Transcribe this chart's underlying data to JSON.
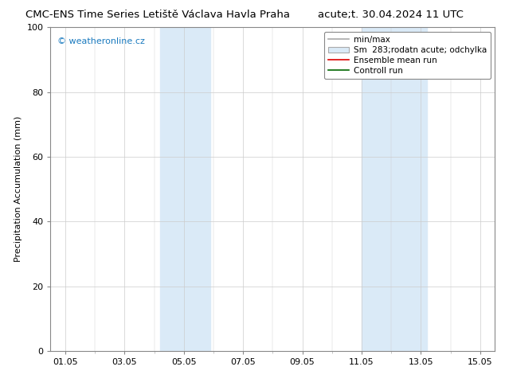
{
  "title_left": "CMC-ENS Time Series Letiště Václava Havla Praha",
  "title_right": "acute;t. 30.04.2024 11 UTC",
  "ylabel": "Precipitation Accumulation (mm)",
  "ylim": [
    0,
    100
  ],
  "xlim": [
    -0.5,
    14.5
  ],
  "xtick_labels": [
    "01.05",
    "03.05",
    "05.05",
    "07.05",
    "09.05",
    "11.05",
    "13.05",
    "15.05"
  ],
  "xtick_positions": [
    0,
    2,
    4,
    6,
    8,
    10,
    12,
    14
  ],
  "shade_regions": [
    {
      "xstart": 3.2,
      "xend": 3.9,
      "color": "#daeaf7"
    },
    {
      "xstart": 3.9,
      "xend": 4.9,
      "color": "#daeaf7"
    },
    {
      "xstart": 10.0,
      "xend": 10.7,
      "color": "#daeaf7"
    },
    {
      "xstart": 10.7,
      "xend": 12.2,
      "color": "#daeaf7"
    }
  ],
  "watermark": "© weatheronline.cz",
  "watermark_color": "#1a7abf",
  "legend_entries": [
    {
      "label": "min/max",
      "color": "#aaaaaa",
      "lw": 1.2,
      "type": "line"
    },
    {
      "label": "Sm  283;rodatn acute; odchylka",
      "color": "#daeaf7",
      "edgecolor": "#aaaaaa",
      "type": "box"
    },
    {
      "label": "Ensemble mean run",
      "color": "#dd0000",
      "lw": 1.2,
      "type": "line"
    },
    {
      "label": "Controll run",
      "color": "#006600",
      "lw": 1.2,
      "type": "line"
    }
  ],
  "bg_color": "#ffffff",
  "plot_bg_color": "#ffffff",
  "grid_color": "#cccccc",
  "title_fontsize": 9.5,
  "axis_fontsize": 8,
  "legend_fontsize": 7.5
}
